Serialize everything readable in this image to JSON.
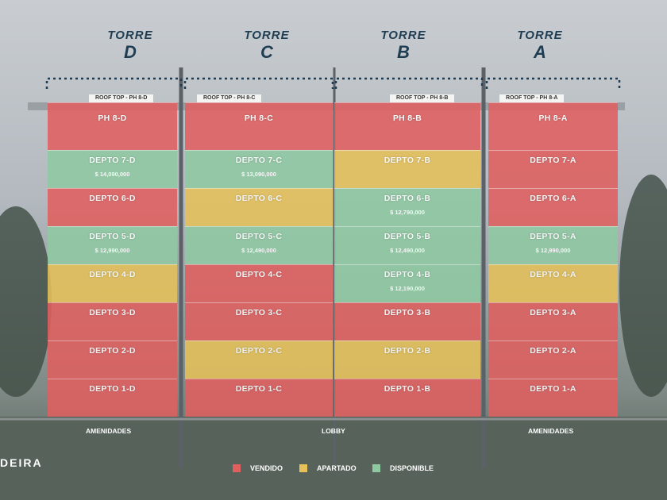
{
  "towers": [
    {
      "word": "TORRE",
      "letter": "D"
    },
    {
      "word": "TORRE",
      "letter": "C"
    },
    {
      "word": "TORRE",
      "letter": "B"
    },
    {
      "word": "TORRE",
      "letter": "A"
    }
  ],
  "roof_labels": [
    "ROOF TOP - PH 8-D",
    "ROOF TOP - PH 8-C",
    "ROOF TOP - PH 8-B",
    "ROOF TOP - PH 8-A"
  ],
  "status_colors": {
    "sold": "#e06060",
    "reserved": "#e6c15a",
    "available": "#8fc9a2"
  },
  "floors": [
    {
      "units": [
        {
          "name": "PH 8-D",
          "price": "",
          "status": "sold"
        },
        {
          "name": "PH 8-C",
          "price": "",
          "status": "sold"
        },
        {
          "name": "PH 8-B",
          "price": "",
          "status": "sold"
        },
        {
          "name": "PH 8-A",
          "price": "",
          "status": "sold"
        }
      ]
    },
    {
      "units": [
        {
          "name": "DEPTO 7-D",
          "price": "$ 14,090,000",
          "status": "available"
        },
        {
          "name": "DEPTO 7-C",
          "price": "$ 13,090,000",
          "status": "available"
        },
        {
          "name": "DEPTO 7-B",
          "price": "",
          "status": "reserved"
        },
        {
          "name": "DEPTO 7-A",
          "price": "",
          "status": "sold"
        }
      ]
    },
    {
      "units": [
        {
          "name": "DEPTO 6-D",
          "price": "",
          "status": "sold"
        },
        {
          "name": "DEPTO 6-C",
          "price": "",
          "status": "reserved"
        },
        {
          "name": "DEPTO 6-B",
          "price": "$ 12,790,000",
          "status": "available"
        },
        {
          "name": "DEPTO 6-A",
          "price": "",
          "status": "sold"
        }
      ]
    },
    {
      "units": [
        {
          "name": "DEPTO 5-D",
          "price": "$ 12,990,000",
          "status": "available"
        },
        {
          "name": "DEPTO 5-C",
          "price": "$ 12,490,000",
          "status": "available"
        },
        {
          "name": "DEPTO 5-B",
          "price": "$ 12,490,000",
          "status": "available"
        },
        {
          "name": "DEPTO 5-A",
          "price": "$ 12,990,000",
          "status": "available"
        }
      ]
    },
    {
      "units": [
        {
          "name": "DEPTO 4-D",
          "price": "",
          "status": "reserved"
        },
        {
          "name": "DEPTO 4-C",
          "price": "",
          "status": "sold"
        },
        {
          "name": "DEPTO 4-B",
          "price": "$ 12,190,000",
          "status": "available"
        },
        {
          "name": "DEPTO 4-A",
          "price": "",
          "status": "reserved"
        }
      ]
    },
    {
      "units": [
        {
          "name": "DEPTO 3-D",
          "price": "",
          "status": "sold"
        },
        {
          "name": "DEPTO 3-C",
          "price": "",
          "status": "sold"
        },
        {
          "name": "DEPTO 3-B",
          "price": "",
          "status": "sold"
        },
        {
          "name": "DEPTO 3-A",
          "price": "",
          "status": "sold"
        }
      ]
    },
    {
      "units": [
        {
          "name": "DEPTO 2-D",
          "price": "",
          "status": "sold"
        },
        {
          "name": "DEPTO 2-C",
          "price": "",
          "status": "reserved"
        },
        {
          "name": "DEPTO 2-B",
          "price": "",
          "status": "reserved"
        },
        {
          "name": "DEPTO 2-A",
          "price": "",
          "status": "sold"
        }
      ]
    },
    {
      "units": [
        {
          "name": "DEPTO 1-D",
          "price": "",
          "status": "sold"
        },
        {
          "name": "DEPTO 1-C",
          "price": "",
          "status": "sold"
        },
        {
          "name": "DEPTO 1-B",
          "price": "",
          "status": "sold"
        },
        {
          "name": "DEPTO 1-A",
          "price": "",
          "status": "sold"
        }
      ]
    }
  ],
  "ground": {
    "left": "AMENIDADES",
    "center": "LOBBY",
    "right": "AMENIDADES"
  },
  "brand": "DEIRA",
  "legend": [
    {
      "label": "VENDIDO",
      "status": "sold"
    },
    {
      "label": "APARTADO",
      "status": "reserved"
    },
    {
      "label": "DISPONIBLE",
      "status": "available"
    }
  ]
}
